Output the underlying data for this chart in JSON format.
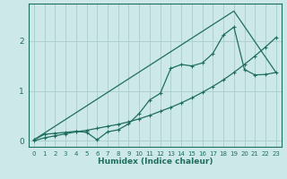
{
  "xlabel": "Humidex (Indice chaleur)",
  "bg_color": "#cde8e8",
  "grid_color": "#aed0d0",
  "line_color": "#1e6e5e",
  "xlim": [
    -0.5,
    23.5
  ],
  "ylim": [
    -0.12,
    2.75
  ],
  "xticks": [
    0,
    1,
    2,
    3,
    4,
    5,
    6,
    7,
    8,
    9,
    10,
    11,
    12,
    13,
    14,
    15,
    16,
    17,
    18,
    19,
    20,
    21,
    22,
    23
  ],
  "yticks": [
    0,
    1,
    2
  ],
  "line1_x": [
    0,
    1,
    2,
    3,
    4,
    5,
    6,
    7,
    8,
    9,
    10,
    11,
    12,
    13,
    14,
    15,
    16,
    17,
    18,
    19,
    20,
    21,
    22,
    23
  ],
  "line1_y": [
    0.02,
    0.13,
    0.15,
    0.17,
    0.19,
    0.17,
    0.02,
    0.18,
    0.22,
    0.34,
    0.55,
    0.82,
    0.95,
    1.45,
    1.53,
    1.5,
    1.56,
    1.75,
    2.12,
    2.28,
    1.43,
    1.32,
    1.33,
    1.37
  ],
  "line2_x": [
    0,
    1,
    2,
    3,
    4,
    5,
    6,
    7,
    8,
    9,
    10,
    11,
    12,
    13,
    14,
    15,
    16,
    17,
    18,
    19,
    20,
    21,
    22,
    23
  ],
  "line2_y": [
    0.0,
    0.06,
    0.1,
    0.14,
    0.18,
    0.21,
    0.25,
    0.29,
    0.33,
    0.38,
    0.44,
    0.51,
    0.59,
    0.67,
    0.76,
    0.86,
    0.97,
    1.09,
    1.22,
    1.37,
    1.53,
    1.7,
    1.88,
    2.07
  ],
  "line3_x": [
    0,
    19,
    23
  ],
  "line3_y": [
    0.02,
    2.6,
    1.37
  ]
}
